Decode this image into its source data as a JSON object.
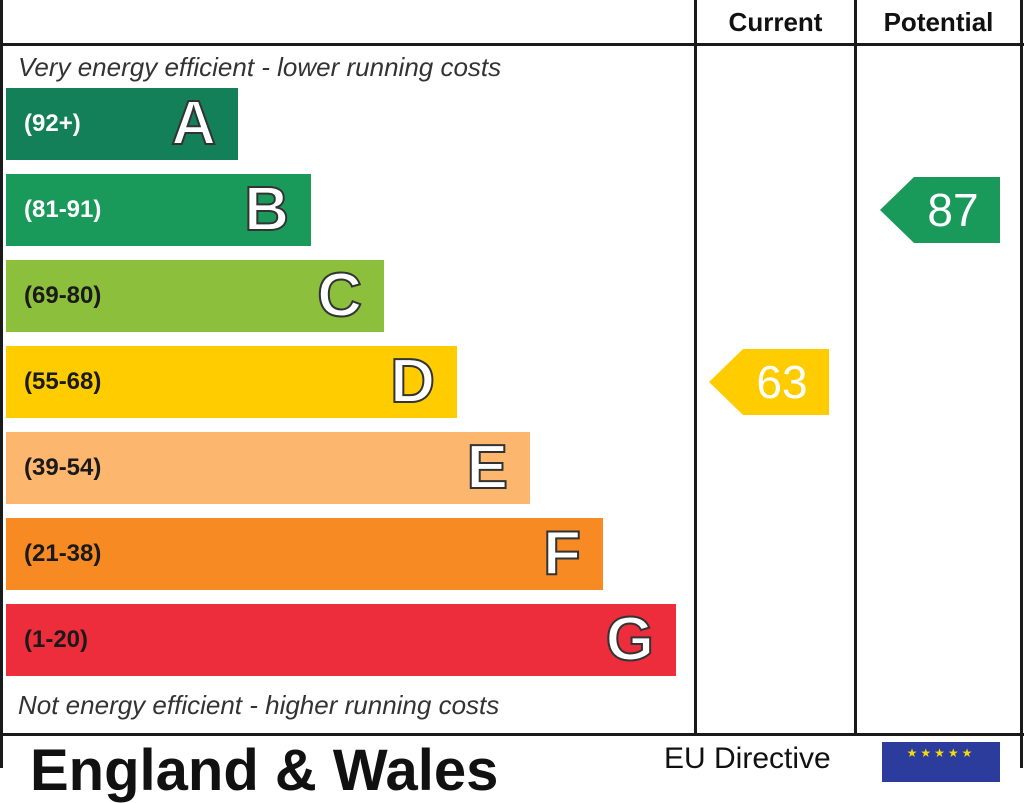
{
  "chart_data": {
    "type": "bar",
    "columns": {
      "current": "Current",
      "potential": "Potential"
    },
    "top_note": "Very energy efficient - lower running costs",
    "bottom_note": "Not energy efficient - higher running costs",
    "bands": [
      {
        "letter": "A",
        "range": "(92+)",
        "color": "#13805a",
        "range_color": "#ffffff"
      },
      {
        "letter": "B",
        "range": "(81-91)",
        "color": "#1a9a5a",
        "range_color": "#ffffff"
      },
      {
        "letter": "C",
        "range": "(69-80)",
        "color": "#8cbf3c",
        "range_color": "#1a1a1a"
      },
      {
        "letter": "D",
        "range": "(55-68)",
        "color": "#ffcc00",
        "range_color": "#1a1a1a"
      },
      {
        "letter": "E",
        "range": "(39-54)",
        "color": "#fdb66e",
        "range_color": "#1a1a1a"
      },
      {
        "letter": "F",
        "range": "(21-38)",
        "color": "#f78a22",
        "range_color": "#1a1a1a"
      },
      {
        "letter": "G",
        "range": "(1-20)",
        "color": "#ed2d3b",
        "range_color": "#1a1a1a"
      }
    ],
    "current": {
      "value": 63,
      "band": "D",
      "color": "#ffcc00"
    },
    "potential": {
      "value": 87,
      "band": "B",
      "color": "#1a9a5a"
    }
  },
  "footer": {
    "title": "England & Wales",
    "eu_label": "EU Directive"
  }
}
